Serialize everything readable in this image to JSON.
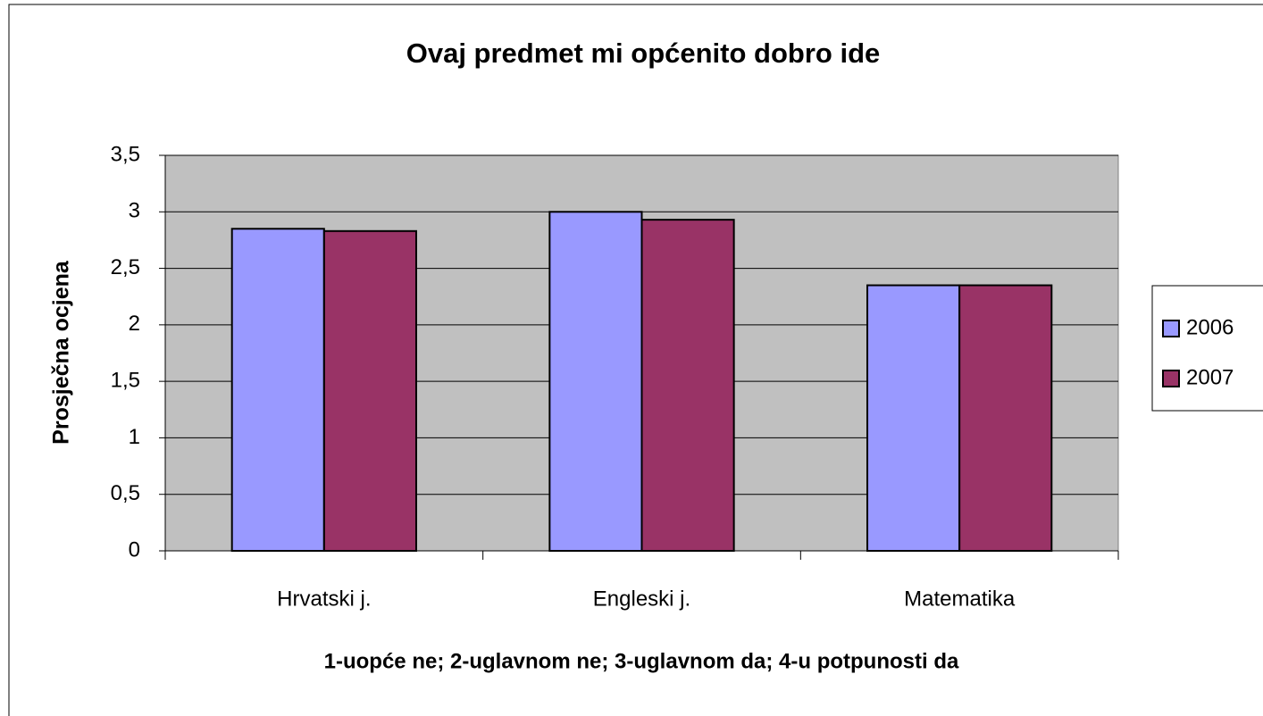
{
  "chart_data": {
    "type": "bar",
    "title": "Ovaj predmet mi općenito dobro ide",
    "y_label": "Prosječna ocjena",
    "x_label": "1-uopće ne; 2-uglavnom ne; 3-uglavnom da; 4-u potpunosti da",
    "categories": [
      "Hrvatski j.",
      "Engleski j.",
      "Matematika"
    ],
    "series": [
      {
        "name": "2006",
        "color": "#9999ff",
        "values": [
          2.85,
          3.0,
          2.35
        ]
      },
      {
        "name": "2007",
        "color": "#993366",
        "values": [
          2.83,
          2.93,
          2.35
        ]
      }
    ],
    "ylim": [
      0,
      3.5
    ],
    "yticks": [
      0,
      {
        "value": 0.5,
        "label": "0,5"
      },
      1,
      {
        "value": 1.5,
        "label": "1,5"
      },
      2,
      {
        "value": 2.5,
        "label": "2,5"
      },
      3,
      {
        "value": 3.5,
        "label": "3,5"
      }
    ],
    "grid": true,
    "legend": "right"
  }
}
